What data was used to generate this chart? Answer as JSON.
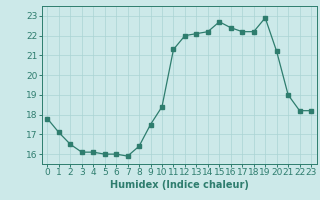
{
  "x": [
    0,
    1,
    2,
    3,
    4,
    5,
    6,
    7,
    8,
    9,
    10,
    11,
    12,
    13,
    14,
    15,
    16,
    17,
    18,
    19,
    20,
    21,
    22,
    23
  ],
  "y": [
    17.8,
    17.1,
    16.5,
    16.1,
    16.1,
    16.0,
    16.0,
    15.9,
    16.4,
    17.5,
    18.4,
    21.3,
    22.0,
    22.1,
    22.2,
    22.7,
    22.4,
    22.2,
    22.2,
    22.9,
    21.2,
    19.0,
    18.2,
    18.2
  ],
  "xlabel": "Humidex (Indice chaleur)",
  "ylim": [
    15.5,
    23.5
  ],
  "xlim": [
    -0.5,
    23.5
  ],
  "yticks": [
    16,
    17,
    18,
    19,
    20,
    21,
    22,
    23
  ],
  "xticks": [
    0,
    1,
    2,
    3,
    4,
    5,
    6,
    7,
    8,
    9,
    10,
    11,
    12,
    13,
    14,
    15,
    16,
    17,
    18,
    19,
    20,
    21,
    22,
    23
  ],
  "line_color": "#2e7d6e",
  "marker_color": "#2e7d6e",
  "bg_color": "#cce9e9",
  "grid_color": "#aad4d4",
  "label_fontsize": 7,
  "tick_fontsize": 6.5
}
